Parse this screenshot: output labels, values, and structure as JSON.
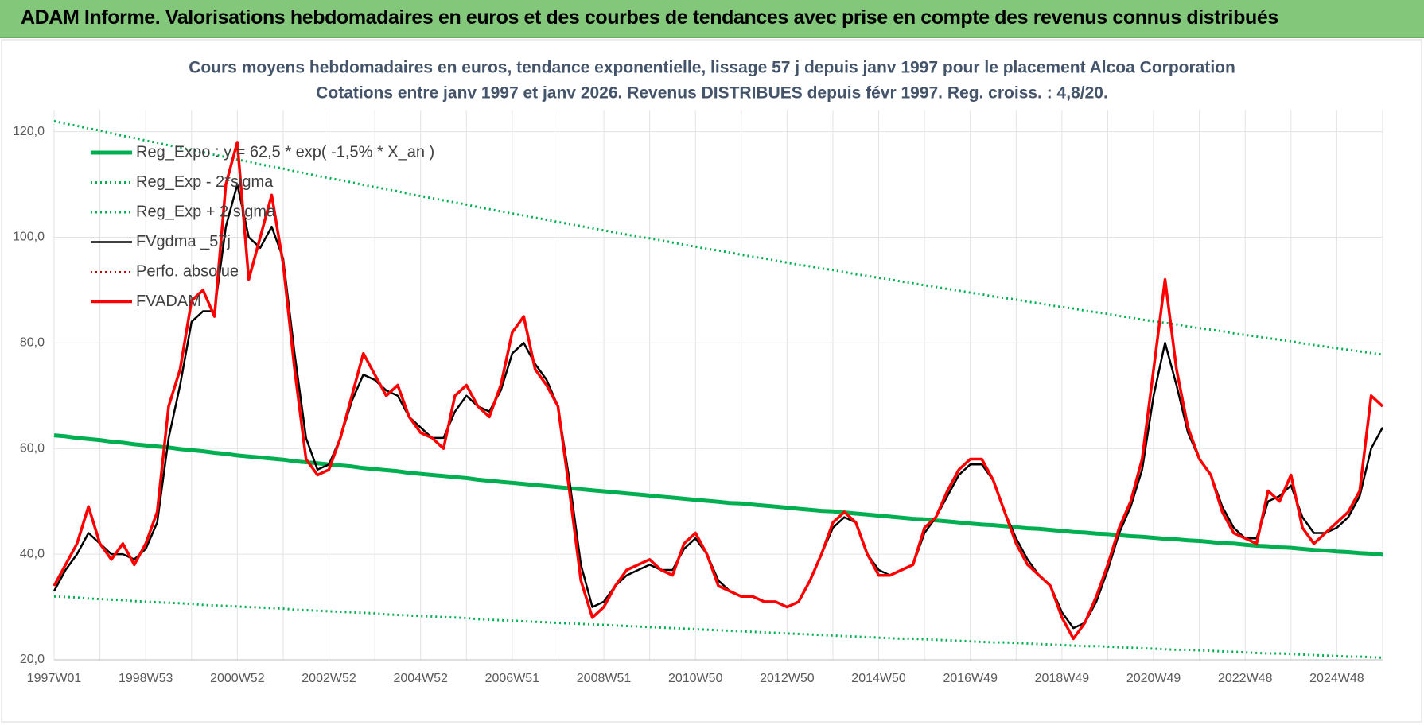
{
  "header": "ADAM Informe. Valorisations hebdomadaires en euros et des courbes de tendances avec prise en compte des revenus connus distribués",
  "chart_data": {
    "type": "line",
    "title": "Cours moyens hebdomadaires en euros, tendance exponentielle, lissage 57 j depuis janv 1997  pour le placement Alcoa Corporation",
    "subtitle": "Cotations entre janv 1997 et janv 2026. Revenus DISTRIBUES depuis févr 1997. Reg. croiss. : 4,8/20.",
    "categories": [
      "1997W01",
      null,
      null,
      null,
      null,
      null,
      null,
      null,
      "1998W53",
      null,
      null,
      null,
      null,
      null,
      null,
      null,
      "2000W52",
      null,
      null,
      null,
      null,
      null,
      null,
      null,
      "2002W52",
      null,
      null,
      null,
      null,
      null,
      null,
      null,
      "2004W52",
      null,
      null,
      null,
      null,
      null,
      null,
      null,
      "2006W51",
      null,
      null,
      null,
      null,
      null,
      null,
      null,
      "2008W51",
      null,
      null,
      null,
      null,
      null,
      null,
      null,
      "2010W50",
      null,
      null,
      null,
      null,
      null,
      null,
      null,
      "2012W50",
      null,
      null,
      null,
      null,
      null,
      null,
      null,
      "2014W50",
      null,
      null,
      null,
      null,
      null,
      null,
      null,
      "2016W49",
      null,
      null,
      null,
      null,
      null,
      null,
      null,
      "2018W49",
      null,
      null,
      null,
      null,
      null,
      null,
      null,
      "2020W49",
      null,
      null,
      null,
      null,
      null,
      null,
      null,
      "2022W48",
      null,
      null,
      null,
      null,
      null,
      null,
      null,
      "2024W48",
      null,
      null,
      null,
      null
    ],
    "ylim": [
      20,
      124
    ],
    "yticks": [
      {
        "value": 20,
        "label": "20,0"
      },
      {
        "value": 40,
        "label": "40,0"
      },
      {
        "value": 60,
        "label": "60,0"
      },
      {
        "value": 80,
        "label": "80,0"
      },
      {
        "value": 100,
        "label": "100,0"
      },
      {
        "value": 120,
        "label": "120,0"
      }
    ],
    "grid": true,
    "legend": "upper left",
    "series": [
      {
        "name": "Reg_Expo : y = 62,5 * exp( -1,5% *  X_an )",
        "color": "#00b050",
        "line_style": "solid",
        "width": 5,
        "values": [
          62.5,
          62.3,
          62.0,
          61.8,
          61.6,
          61.3,
          61.1,
          60.8,
          60.6,
          60.4,
          60.2,
          59.9,
          59.7,
          59.5,
          59.2,
          59.0,
          58.7,
          58.5,
          58.3,
          58.1,
          57.9,
          57.6,
          57.4,
          57.2,
          57.0,
          56.8,
          56.6,
          56.3,
          56.1,
          55.9,
          55.7,
          55.4,
          55.2,
          55.0,
          54.8,
          54.6,
          54.4,
          54.1,
          53.9,
          53.7,
          53.5,
          53.3,
          53.1,
          52.9,
          52.7,
          52.5,
          52.3,
          52.1,
          51.9,
          51.7,
          51.5,
          51.3,
          51.1,
          50.9,
          50.7,
          50.5,
          50.3,
          50.1,
          49.9,
          49.7,
          49.6,
          49.4,
          49.2,
          49.0,
          48.8,
          48.6,
          48.4,
          48.2,
          48.1,
          47.9,
          47.7,
          47.5,
          47.3,
          47.1,
          46.9,
          46.7,
          46.6,
          46.4,
          46.2,
          46.0,
          45.8,
          45.6,
          45.5,
          45.3,
          45.1,
          44.9,
          44.8,
          44.6,
          44.4,
          44.2,
          44.1,
          43.9,
          43.8,
          43.6,
          43.4,
          43.3,
          43.1,
          42.9,
          42.8,
          42.6,
          42.5,
          42.3,
          42.1,
          42.0,
          41.8,
          41.6,
          41.5,
          41.3,
          41.2,
          41.0,
          40.8,
          40.7,
          40.5,
          40.4,
          40.2,
          40.1,
          39.9
        ]
      },
      {
        "name": "Reg_Exp - 2*sigma",
        "color": "#00b050",
        "line_style": "dotted",
        "width": 3,
        "values": [
          32.0,
          31.9,
          31.8,
          31.6,
          31.5,
          31.4,
          31.3,
          31.1,
          31.0,
          30.9,
          30.8,
          30.7,
          30.6,
          30.4,
          30.3,
          30.2,
          30.1,
          30.0,
          29.9,
          29.8,
          29.7,
          29.5,
          29.4,
          29.3,
          29.2,
          29.1,
          29.0,
          28.9,
          28.8,
          28.6,
          28.5,
          28.4,
          28.3,
          28.2,
          28.1,
          28.0,
          27.9,
          27.7,
          27.6,
          27.5,
          27.4,
          27.3,
          27.2,
          27.1,
          27.0,
          26.9,
          26.8,
          26.7,
          26.6,
          26.5,
          26.4,
          26.3,
          26.2,
          26.1,
          26.0,
          25.9,
          25.8,
          25.7,
          25.6,
          25.5,
          25.4,
          25.3,
          25.2,
          25.1,
          25.0,
          24.9,
          24.8,
          24.7,
          24.6,
          24.5,
          24.4,
          24.3,
          24.2,
          24.1,
          24.0,
          24.0,
          23.9,
          23.8,
          23.7,
          23.6,
          23.5,
          23.4,
          23.3,
          23.3,
          23.2,
          23.1,
          23.0,
          22.9,
          22.8,
          22.7,
          22.6,
          22.6,
          22.5,
          22.4,
          22.3,
          22.2,
          22.1,
          22.0,
          21.9,
          21.9,
          21.8,
          21.7,
          21.6,
          21.5,
          21.4,
          21.3,
          21.2,
          21.2,
          21.1,
          21.0,
          20.9,
          20.8,
          20.7,
          20.6,
          20.6,
          20.5,
          20.4
        ]
      },
      {
        "name": "Reg_Exp + 2 sigma",
        "color": "#00b050",
        "line_style": "dotted",
        "width": 3,
        "values": [
          122.0,
          121.5,
          121.1,
          120.6,
          120.2,
          119.7,
          119.2,
          118.8,
          118.3,
          117.9,
          117.4,
          117.0,
          116.5,
          116.1,
          115.6,
          115.2,
          114.7,
          114.3,
          113.8,
          113.4,
          113.0,
          112.5,
          112.1,
          111.6,
          111.2,
          110.8,
          110.4,
          109.9,
          109.5,
          109.1,
          108.7,
          108.2,
          107.8,
          107.4,
          107.0,
          106.6,
          106.2,
          105.7,
          105.3,
          104.9,
          104.5,
          104.1,
          103.7,
          103.3,
          102.9,
          102.5,
          102.1,
          101.7,
          101.3,
          100.9,
          100.5,
          100.1,
          99.8,
          99.4,
          99.0,
          98.6,
          98.2,
          97.8,
          97.5,
          97.1,
          96.7,
          96.3,
          96.0,
          95.6,
          95.2,
          94.8,
          94.5,
          94.1,
          93.8,
          93.4,
          93.0,
          92.7,
          92.3,
          92.0,
          91.6,
          91.3,
          90.9,
          90.6,
          90.2,
          89.9,
          89.5,
          89.2,
          88.8,
          88.5,
          88.2,
          87.8,
          87.5,
          87.1,
          86.8,
          86.5,
          86.1,
          85.8,
          85.5,
          85.1,
          84.8,
          84.4,
          84.1,
          83.8,
          83.5,
          83.1,
          82.8,
          82.5,
          82.2,
          81.8,
          81.5,
          81.2,
          80.9,
          80.6,
          80.3,
          79.9,
          79.6,
          79.3,
          79.0,
          78.7,
          78.4,
          78.1,
          77.8
        ]
      },
      {
        "name": "FVgdma _57j",
        "color": "#000000",
        "line_style": "solid",
        "width": 2.5,
        "values": [
          33,
          37,
          40,
          44,
          42,
          40,
          40,
          39,
          41,
          46,
          62,
          72,
          84,
          86,
          86,
          102,
          110,
          100,
          98,
          102,
          96,
          78,
          62,
          56,
          57,
          62,
          69,
          74,
          73,
          71,
          70,
          66,
          64,
          62,
          62,
          67,
          70,
          68,
          67,
          71,
          78,
          80,
          76,
          73,
          68,
          54,
          38,
          30,
          31,
          34,
          36,
          37,
          38,
          37,
          37,
          41,
          43,
          40,
          35,
          33,
          32,
          32,
          31,
          31,
          30,
          31,
          35,
          40,
          45,
          47,
          46,
          40,
          37,
          36,
          37,
          38,
          44,
          47,
          51,
          55,
          57,
          57,
          54,
          48,
          43,
          39,
          36,
          34,
          29,
          26,
          27,
          31,
          37,
          44,
          49,
          56,
          70,
          80,
          72,
          63,
          58,
          55,
          49,
          45,
          43,
          43,
          50,
          51,
          53,
          47,
          44,
          44,
          45,
          47,
          51,
          60,
          64
        ]
      },
      {
        "name": "Perfo. absolue",
        "color": "#c00000",
        "line_style": "dotted",
        "width": 2,
        "values": [
          34,
          38,
          42,
          49,
          42,
          39,
          42,
          38,
          42,
          48,
          68,
          75,
          88,
          90,
          85,
          110,
          118,
          92,
          100,
          108,
          95,
          75,
          58,
          55,
          56,
          62,
          70,
          78,
          74,
          70,
          72,
          66,
          63,
          62,
          60,
          70,
          72,
          68,
          66,
          72,
          82,
          85,
          75,
          72,
          68,
          52,
          35,
          28,
          30,
          34,
          37,
          38,
          39,
          37,
          36,
          42,
          44,
          40,
          34,
          33,
          32,
          32,
          31,
          31,
          30,
          31,
          35,
          40,
          46,
          48,
          46,
          40,
          36,
          36,
          37,
          38,
          45,
          47,
          52,
          56,
          58,
          58,
          54,
          48,
          42,
          38,
          36,
          34,
          28,
          24,
          27,
          32,
          38,
          45,
          50,
          58,
          75,
          92,
          75,
          64,
          58,
          55,
          48,
          44,
          43,
          42,
          52,
          50,
          55,
          45,
          42,
          44,
          46,
          48,
          52,
          70,
          68
        ]
      },
      {
        "name": "FVADAM",
        "color": "#ff0000",
        "line_style": "solid",
        "width": 3.5,
        "values": [
          34,
          38,
          42,
          49,
          42,
          39,
          42,
          38,
          42,
          48,
          68,
          75,
          88,
          90,
          85,
          110,
          118,
          92,
          100,
          108,
          95,
          75,
          58,
          55,
          56,
          62,
          70,
          78,
          74,
          70,
          72,
          66,
          63,
          62,
          60,
          70,
          72,
          68,
          66,
          72,
          82,
          85,
          75,
          72,
          68,
          52,
          35,
          28,
          30,
          34,
          37,
          38,
          39,
          37,
          36,
          42,
          44,
          40,
          34,
          33,
          32,
          32,
          31,
          31,
          30,
          31,
          35,
          40,
          46,
          48,
          46,
          40,
          36,
          36,
          37,
          38,
          45,
          47,
          52,
          56,
          58,
          58,
          54,
          48,
          42,
          38,
          36,
          34,
          28,
          24,
          27,
          32,
          38,
          45,
          50,
          58,
          75,
          92,
          75,
          64,
          58,
          55,
          48,
          44,
          43,
          42,
          52,
          50,
          55,
          45,
          42,
          44,
          46,
          48,
          52,
          70,
          68
        ]
      }
    ]
  }
}
